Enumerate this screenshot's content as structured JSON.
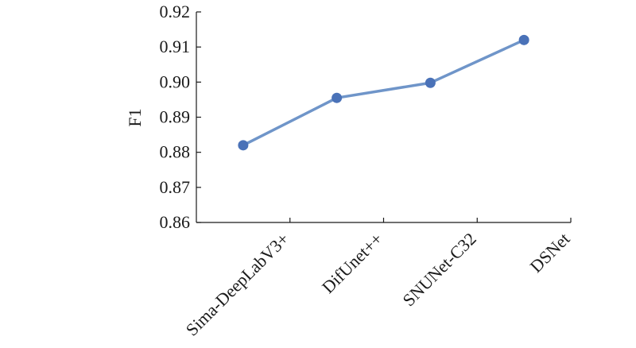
{
  "chart_data": {
    "type": "line",
    "title": "",
    "xlabel": "",
    "ylabel": "F1",
    "categories": [
      "Sima-DeepLabV3+",
      "DifUnet++",
      "SNUNet-C32",
      "DSNet"
    ],
    "series": [
      {
        "values": [
          0.882,
          0.8955,
          0.8998,
          0.912
        ]
      }
    ],
    "ylim": [
      0.86,
      0.92
    ],
    "yticks": [
      "0.86",
      "0.87",
      "0.88",
      "0.89",
      "0.90",
      "0.91",
      "0.92"
    ],
    "grid": false,
    "legend": "none",
    "colors": {
      "line": "#6f95c9",
      "marker": "#4a72b8",
      "axis": "#1a1a1a"
    }
  }
}
